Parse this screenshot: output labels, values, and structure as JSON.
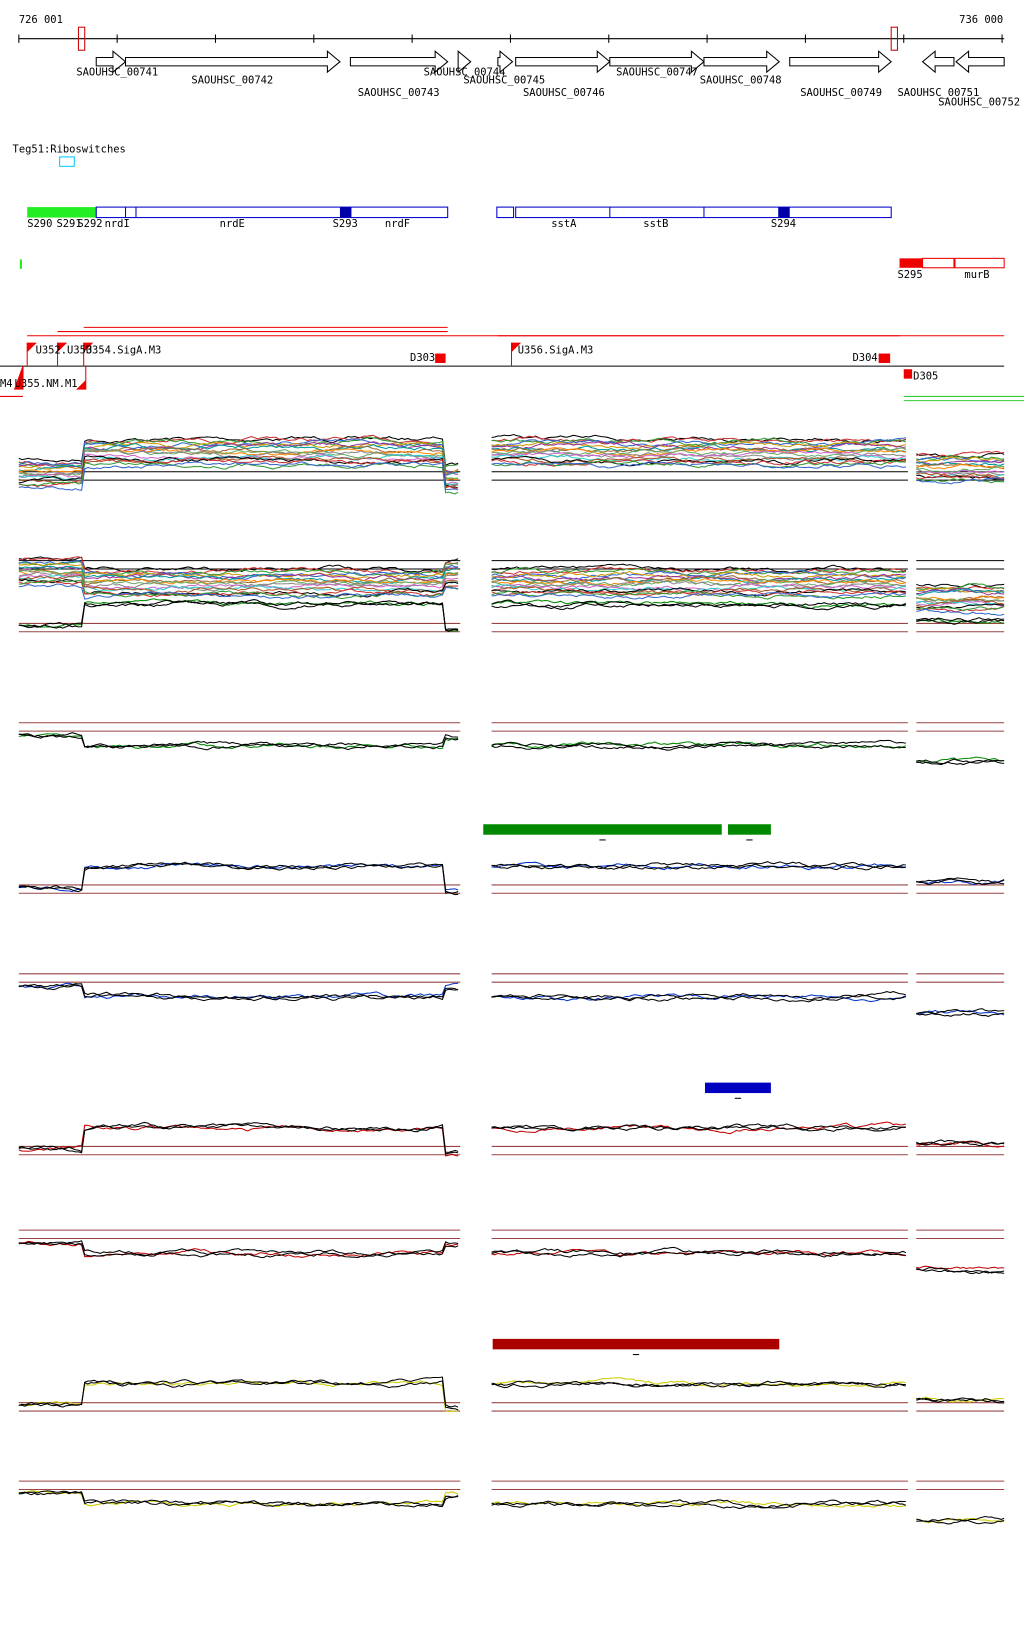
{
  "ruler": {
    "start": "726 001",
    "end": "736 000"
  },
  "genes": [
    "SAOUHSC_00741",
    "SAOUHSC_00742",
    "SAOUHSC_00743",
    "SAOUHSC_00744",
    "SAOUHSC_00745",
    "SAOUHSC_00746",
    "SAOUHSC_00747",
    "SAOUHSC_00748",
    "SAOUHSC_00749",
    "SAOUHSC_00751",
    "SAOUHSC_00752"
  ],
  "riboswitch_track": "Teg51:Riboswitches",
  "features": [
    "S290",
    "S291",
    "S292",
    "nrdI",
    "nrdE",
    "S293",
    "nrdF",
    "sstA",
    "sstB",
    "S294",
    "S295",
    "murB"
  ],
  "promoters": [
    "U352.U353",
    "U354.SigA.M3",
    "U356.SigA.M3",
    "M4",
    "U355.NM.M1"
  ],
  "terminators": [
    "D303",
    "D304",
    "D305"
  ]
}
